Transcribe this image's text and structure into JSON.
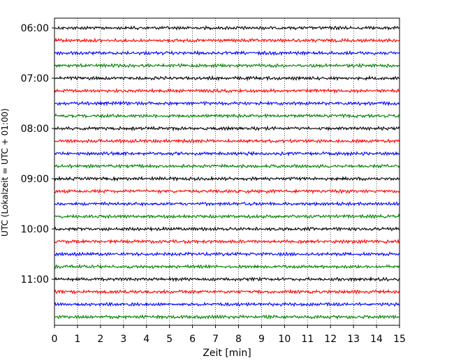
{
  "chart_data": {
    "type": "line",
    "title": "",
    "xlabel": "Zeit  [min]",
    "ylabel": "UTC (Lokalzeit = UTC + 01:00)",
    "xlim": [
      0,
      15
    ],
    "x_ticks": [
      0,
      1,
      2,
      3,
      4,
      5,
      6,
      7,
      8,
      9,
      10,
      11,
      12,
      13,
      14,
      15
    ],
    "grid": "vertical-dotted",
    "y_tick_labels": [
      "06:00",
      "07:00",
      "08:00",
      "09:00",
      "10:00",
      "11:00"
    ],
    "trace_interval_minutes": 15,
    "start_time": "06:00",
    "colors": [
      "#000000",
      "#ff0000",
      "#0000ff",
      "#008000"
    ],
    "series": [
      {
        "start": "06:00",
        "color": "#000000"
      },
      {
        "start": "06:15",
        "color": "#ff0000"
      },
      {
        "start": "06:30",
        "color": "#0000ff"
      },
      {
        "start": "06:45",
        "color": "#008000"
      },
      {
        "start": "07:00",
        "color": "#000000"
      },
      {
        "start": "07:15",
        "color": "#ff0000"
      },
      {
        "start": "07:30",
        "color": "#0000ff"
      },
      {
        "start": "07:45",
        "color": "#008000"
      },
      {
        "start": "08:00",
        "color": "#000000"
      },
      {
        "start": "08:15",
        "color": "#ff0000"
      },
      {
        "start": "08:30",
        "color": "#0000ff"
      },
      {
        "start": "08:45",
        "color": "#008000"
      },
      {
        "start": "09:00",
        "color": "#000000"
      },
      {
        "start": "09:15",
        "color": "#ff0000"
      },
      {
        "start": "09:30",
        "color": "#0000ff"
      },
      {
        "start": "09:45",
        "color": "#008000"
      },
      {
        "start": "10:00",
        "color": "#000000"
      },
      {
        "start": "10:15",
        "color": "#ff0000"
      },
      {
        "start": "10:30",
        "color": "#0000ff"
      },
      {
        "start": "10:45",
        "color": "#008000"
      },
      {
        "start": "11:00",
        "color": "#000000"
      },
      {
        "start": "11:15",
        "color": "#ff0000"
      },
      {
        "start": "11:30",
        "color": "#0000ff"
      },
      {
        "start": "11:45",
        "color": "#008000"
      }
    ]
  }
}
